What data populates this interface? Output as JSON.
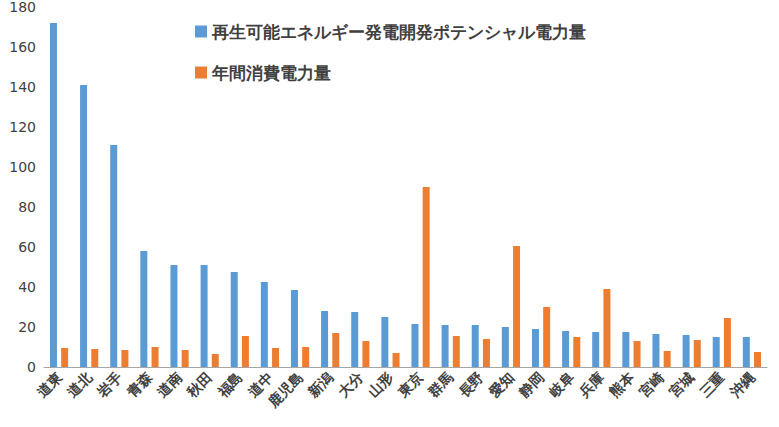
{
  "chart_data": {
    "type": "bar",
    "categories": [
      "道東",
      "道北",
      "岩手",
      "青森",
      "道南",
      "秋田",
      "福島",
      "道中",
      "鹿児島",
      "新潟",
      "大分",
      "山形",
      "東京",
      "群馬",
      "長野",
      "愛知",
      "静岡",
      "岐阜",
      "兵庫",
      "熊本",
      "宮崎",
      "宮城",
      "三重",
      "沖縄"
    ],
    "series": [
      {
        "name": "再生可能エネルギー発電開発ポテンシャル電力量",
        "color": "#5b9bd5",
        "values": [
          172,
          141,
          111,
          58,
          51,
          51,
          47.5,
          42.5,
          38.5,
          28,
          27.5,
          25,
          21.5,
          21,
          21,
          20,
          19,
          18,
          17.5,
          17.5,
          16.5,
          16,
          15,
          15
        ]
      },
      {
        "name": "年間消費電力量",
        "color": "#ed7d31",
        "values": [
          9.5,
          9,
          8.5,
          10,
          8.5,
          6.5,
          15.5,
          9.5,
          10,
          17,
          13,
          7,
          90,
          15.5,
          14,
          60.5,
          30,
          15,
          39,
          13,
          8,
          13.5,
          24.5,
          7.5
        ]
      }
    ],
    "ylim": [
      0,
      180
    ],
    "yticks": [
      0,
      20,
      40,
      60,
      80,
      100,
      120,
      140,
      160,
      180
    ],
    "grid": false,
    "legend": "upper center"
  }
}
